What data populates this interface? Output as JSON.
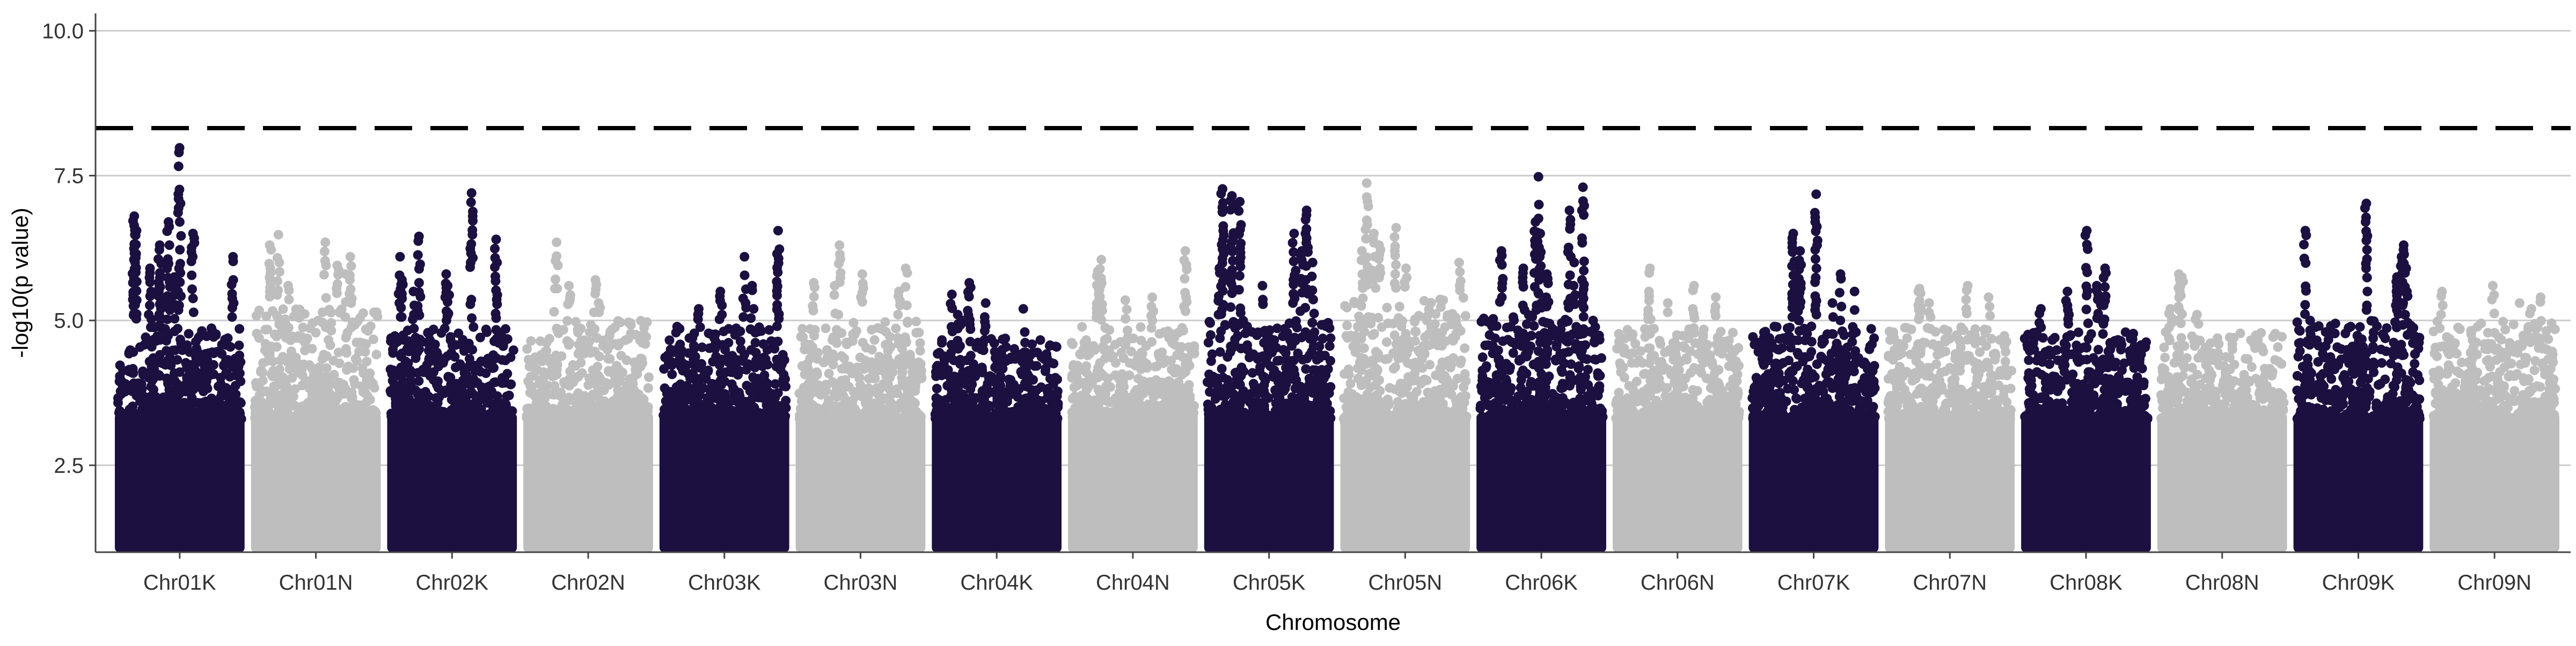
{
  "chart_data": {
    "type": "scatter",
    "subtype": "manhattan",
    "title": "",
    "xlabel": "Chromosome",
    "ylabel": "-log10(p value)",
    "ylim": [
      1.0,
      10.3
    ],
    "yticks": [
      2.5,
      5.0,
      7.5,
      10.0
    ],
    "grid": "horizontal",
    "legend": "none",
    "threshold": 8.32,
    "point_floor": 1.0,
    "colors": {
      "dark": "#1b1040",
      "light": "#bebebe",
      "threshold": "#000000",
      "grid": "#cccccc",
      "axis": "#444444",
      "text": "#333333"
    },
    "chromosomes": [
      {
        "name": "Chr01K",
        "color": "dark",
        "top_points": [
          7.98,
          6.8,
          6.7,
          6.55,
          6.5,
          6.3,
          6.1,
          6.05,
          5.9,
          5.75,
          5.6
        ],
        "band_top": 4.9
      },
      {
        "name": "Chr01N",
        "color": "light",
        "top_points": [
          6.48,
          6.35,
          6.3,
          6.1,
          5.95,
          5.8,
          5.65,
          5.6
        ],
        "band_top": 5.2
      },
      {
        "name": "Chr02K",
        "color": "dark",
        "top_points": [
          7.2,
          6.45,
          6.4,
          6.1,
          5.8,
          5.7,
          5.6,
          5.5
        ],
        "band_top": 4.9
      },
      {
        "name": "Chr02N",
        "color": "light",
        "top_points": [
          6.35,
          5.7,
          5.6,
          5.55,
          5.4,
          5.3
        ],
        "band_top": 5.0
      },
      {
        "name": "Chr03K",
        "color": "dark",
        "top_points": [
          6.55,
          6.1,
          5.6,
          5.5,
          5.2,
          5.1
        ],
        "band_top": 4.9
      },
      {
        "name": "Chr03N",
        "color": "light",
        "top_points": [
          6.3,
          5.9,
          5.8,
          5.65,
          5.6,
          5.5
        ],
        "band_top": 5.0
      },
      {
        "name": "Chr04K",
        "color": "dark",
        "top_points": [
          5.65,
          5.45,
          5.3,
          5.2,
          5.1,
          5.0
        ],
        "band_top": 4.7
      },
      {
        "name": "Chr04N",
        "color": "light",
        "top_points": [
          6.2,
          6.05,
          5.85,
          5.6,
          5.4,
          5.35
        ],
        "band_top": 4.9
      },
      {
        "name": "Chr05K",
        "color": "dark",
        "top_points": [
          7.27,
          7.15,
          7.05,
          6.9,
          6.5,
          6.2,
          6.0,
          5.9,
          5.6
        ],
        "band_top": 5.0
      },
      {
        "name": "Chr05N",
        "color": "light",
        "top_points": [
          7.37,
          6.6,
          6.5,
          6.3,
          6.2,
          6.0,
          5.9,
          5.8
        ],
        "band_top": 5.4
      },
      {
        "name": "Chr06K",
        "color": "dark",
        "top_points": [
          7.48,
          7.3,
          6.9,
          6.7,
          6.5,
          6.2,
          6.0,
          5.9,
          5.8
        ],
        "band_top": 5.1
      },
      {
        "name": "Chr06N",
        "color": "light",
        "top_points": [
          5.9,
          5.6,
          5.5,
          5.4,
          5.3
        ],
        "band_top": 4.9
      },
      {
        "name": "Chr07K",
        "color": "dark",
        "top_points": [
          7.18,
          6.5,
          6.2,
          5.8,
          5.5,
          5.4,
          5.3
        ],
        "band_top": 4.9
      },
      {
        "name": "Chr07N",
        "color": "light",
        "top_points": [
          5.6,
          5.55,
          5.5,
          5.4,
          5.3
        ],
        "band_top": 4.9
      },
      {
        "name": "Chr08K",
        "color": "dark",
        "top_points": [
          6.55,
          5.9,
          5.6,
          5.5,
          5.35,
          5.2
        ],
        "band_top": 4.8
      },
      {
        "name": "Chr08N",
        "color": "light",
        "top_points": [
          5.8,
          5.75,
          5.5,
          5.2,
          5.1
        ],
        "band_top": 4.8
      },
      {
        "name": "Chr09K",
        "color": "dark",
        "top_points": [
          7.02,
          6.55,
          6.3,
          6.1,
          5.9,
          5.75,
          5.5
        ],
        "band_top": 5.0
      },
      {
        "name": "Chr09N",
        "color": "light",
        "top_points": [
          5.6,
          5.5,
          5.4,
          5.3,
          5.2
        ],
        "band_top": 5.0
      }
    ]
  }
}
